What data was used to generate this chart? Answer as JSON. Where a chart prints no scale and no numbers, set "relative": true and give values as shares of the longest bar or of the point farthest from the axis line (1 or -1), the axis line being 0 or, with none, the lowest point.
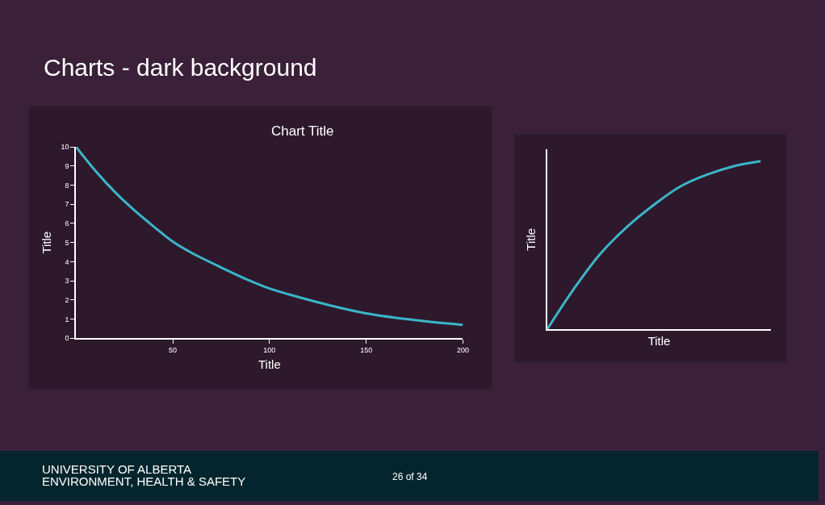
{
  "chart_data": [
    {
      "type": "line",
      "title": "Chart Title",
      "xlabel": "Title",
      "ylabel": "Title",
      "annotations": [
        "Charts - dark background",
        "UNIVERSITY OF ALBERTA",
        "ENVIRONMENT, HEALTH & SAFETY",
        "26 of 34"
      ],
      "x": [
        0,
        10,
        20,
        30,
        40,
        50,
        60,
        75,
        90,
        100,
        115,
        130,
        150,
        175,
        200
      ],
      "series": [
        {
          "color": "#3bb5c9",
          "values": [
            10,
            8.75,
            7.65,
            6.7,
            5.85,
            5.05,
            4.45,
            3.7,
            3.0,
            2.6,
            2.15,
            1.75,
            1.3,
            0.95,
            0.7
          ]
        }
      ],
      "xlim": [
        0,
        200
      ],
      "xticks": [
        50,
        100,
        150,
        200
      ],
      "ylim": [
        0,
        10
      ],
      "yticks": [
        0,
        1,
        2,
        3,
        4,
        5,
        6,
        7,
        8,
        9,
        10
      ],
      "grid": false,
      "marker": "none",
      "line_style": "solid"
    },
    {
      "type": "line",
      "relative": true,
      "xlabel": "Title",
      "ylabel": "Title",
      "categories": [
        null,
        null,
        null,
        null,
        null,
        null,
        null,
        null,
        null
      ],
      "series": [
        {
          "color": "#3bb5c9",
          "values": [
            0,
            0.24,
            0.45,
            0.61,
            0.74,
            0.85,
            0.92,
            0.97,
            1
          ]
        }
      ],
      "tick_labels": false,
      "grid": false,
      "marker": "none",
      "line_style": "solid"
    }
  ]
}
